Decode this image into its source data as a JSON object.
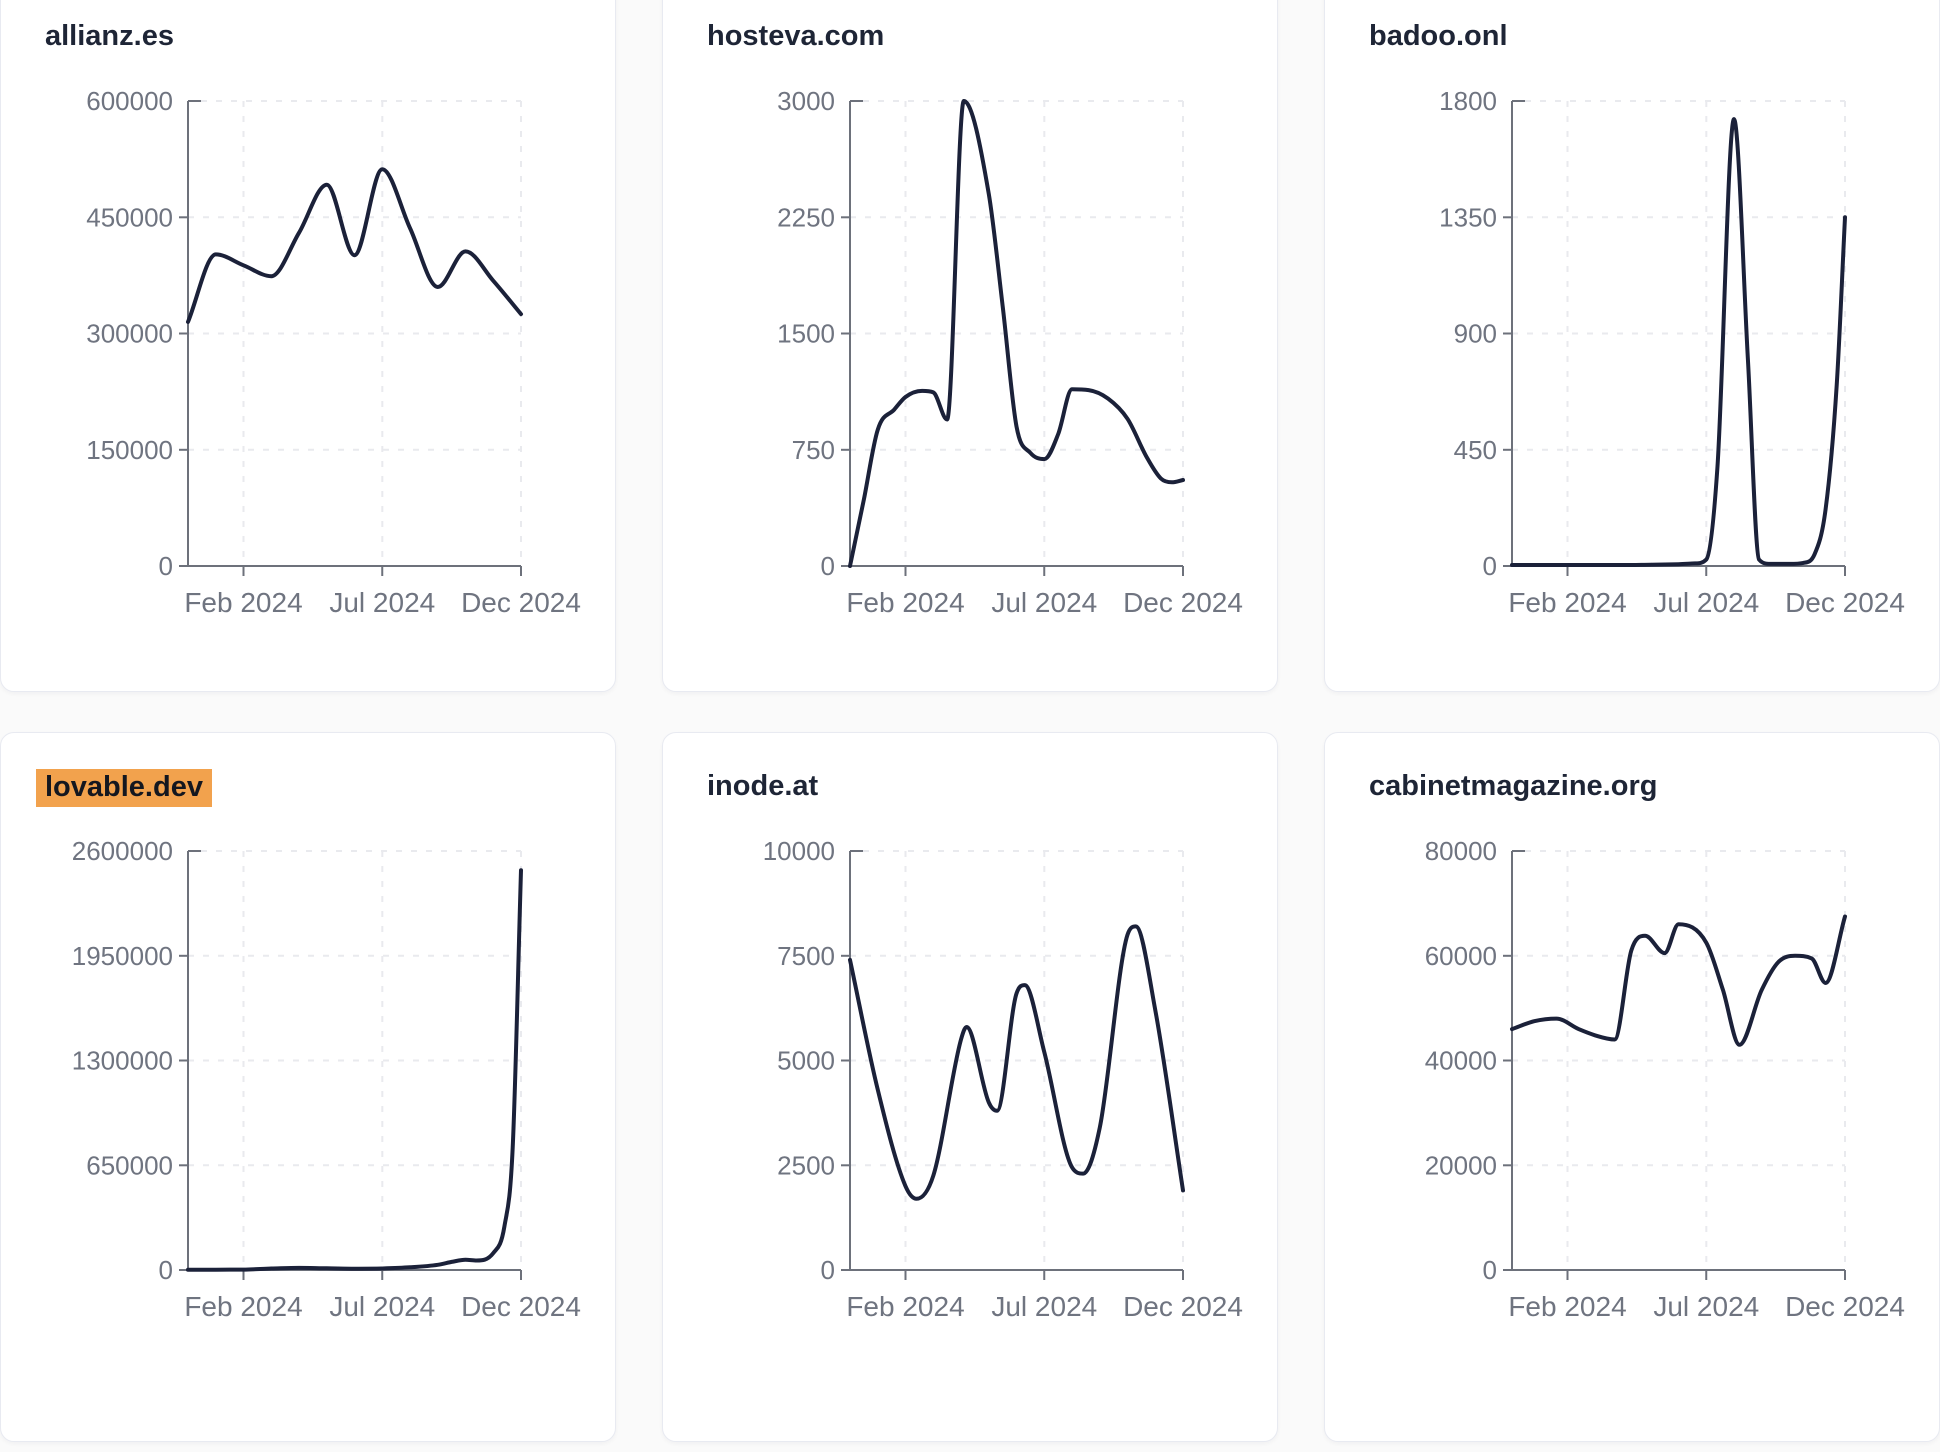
{
  "page": {
    "background_color": "#fafafa",
    "card_background": "#ffffff",
    "card_border_color": "#e8eaf1",
    "title_color": "#1e2536",
    "axis_color": "#6d717b",
    "axis_text_color": "#6f7480",
    "gridline_color": "#e9eaee",
    "line_color": "#1b2139",
    "highlight_color": "#f2a24d"
  },
  "chart_data": [
    {
      "type": "line",
      "title": "allianz.es",
      "highlighted": false,
      "x_unit": "month_index (0 = Dec 2023, 12 = Dec 2024)",
      "x_ticks": {
        "labels": [
          "Feb 2024",
          "Jul 2024",
          "Dec 2024"
        ],
        "positions": [
          2,
          7,
          12
        ]
      },
      "y_ticks": [
        0,
        150000,
        300000,
        450000,
        600000
      ],
      "ylim": [
        0,
        600000
      ],
      "grid": "dashed",
      "legend": "none",
      "x": [
        0,
        1,
        2,
        3,
        4,
        5,
        6,
        7,
        8,
        9,
        10,
        11,
        12
      ],
      "y": [
        315000,
        402000,
        388000,
        374000,
        430000,
        492000,
        401000,
        512000,
        436000,
        360000,
        406000,
        368000,
        325000
      ]
    },
    {
      "type": "line",
      "title": "hosteva.com",
      "highlighted": false,
      "x_unit": "month_index (0 = Dec 2023, 12 = Dec 2024)",
      "x_ticks": {
        "labels": [
          "Feb 2024",
          "Jul 2024",
          "Dec 2024"
        ],
        "positions": [
          2,
          7,
          12
        ]
      },
      "y_ticks": [
        0,
        750,
        1500,
        2250,
        3000
      ],
      "ylim": [
        0,
        3000
      ],
      "grid": "dashed",
      "legend": "none",
      "x": [
        0,
        0.5,
        1,
        1.6,
        2,
        2.6,
        3,
        3.5,
        4.1,
        5,
        5.5,
        6,
        6.5,
        7,
        7.5,
        8,
        8.6,
        9.3,
        10,
        10.7,
        11.2,
        11.6,
        12
      ],
      "y": [
        0,
        430,
        880,
        1010,
        1090,
        1130,
        1120,
        945,
        3000,
        2400,
        1680,
        900,
        730,
        690,
        850,
        1140,
        1135,
        1080,
        950,
        700,
        565,
        540,
        555
      ]
    },
    {
      "type": "line",
      "title": "badoo.onl",
      "highlighted": false,
      "x_unit": "month_index (0 = Dec 2023, 12 = Dec 2024)",
      "x_ticks": {
        "labels": [
          "Feb 2024",
          "Jul 2024",
          "Dec 2024"
        ],
        "positions": [
          2,
          7,
          12
        ]
      },
      "y_ticks": [
        0,
        450,
        900,
        1350,
        1800
      ],
      "ylim": [
        0,
        1800
      ],
      "grid": "dashed",
      "legend": "none",
      "x": [
        0,
        1,
        2,
        3,
        4,
        5,
        6,
        6.6,
        7,
        7.4,
        8,
        8.5,
        8.9,
        9.3,
        10,
        10.5,
        10.9,
        11.3,
        11.7,
        12
      ],
      "y": [
        4,
        4,
        4,
        4,
        4,
        5,
        7,
        10,
        25,
        380,
        1730,
        800,
        25,
        8,
        8,
        12,
        45,
        220,
        700,
        1350
      ]
    },
    {
      "type": "line",
      "title": "lovable.dev",
      "highlighted": true,
      "x_unit": "month_index (0 = Dec 2023, 12 = Dec 2024)",
      "x_ticks": {
        "labels": [
          "Feb 2024",
          "Jul 2024",
          "Dec 2024"
        ],
        "positions": [
          2,
          7,
          12
        ]
      },
      "y_ticks": [
        0,
        650000,
        1300000,
        1950000,
        2600000
      ],
      "ylim": [
        0,
        2600000
      ],
      "grid": "dashed",
      "legend": "none",
      "x": [
        0,
        1,
        2,
        3,
        4,
        5,
        6,
        7,
        8,
        9,
        9.5,
        10,
        10.4,
        11,
        11.4,
        11.7,
        12
      ],
      "y": [
        1200,
        1600,
        2200,
        9000,
        13000,
        10500,
        8000,
        9500,
        17000,
        32000,
        50000,
        63000,
        59000,
        105000,
        270000,
        760000,
        2480000
      ]
    },
    {
      "type": "line",
      "title": "inode.at",
      "highlighted": false,
      "x_unit": "month_index (0 = Dec 2023, 12 = Dec 2024)",
      "x_ticks": {
        "labels": [
          "Feb 2024",
          "Jul 2024",
          "Dec 2024"
        ],
        "positions": [
          2,
          7,
          12
        ]
      },
      "y_ticks": [
        0,
        2500,
        5000,
        7500,
        10000
      ],
      "ylim": [
        0,
        10000
      ],
      "grid": "dashed",
      "legend": "none",
      "x": [
        0,
        1,
        2,
        2.4,
        3,
        4,
        4.2,
        5,
        5.3,
        6,
        6.3,
        7,
        8,
        8.4,
        9,
        10,
        10.3,
        11,
        12
      ],
      "y": [
        7400,
        4300,
        2000,
        1700,
        2250,
        5500,
        5800,
        4000,
        3800,
        6600,
        6800,
        5200,
        2450,
        2300,
        3400,
        8000,
        8200,
        6200,
        1900
      ]
    },
    {
      "type": "line",
      "title": "cabinetmagazine.org",
      "highlighted": false,
      "x_unit": "month_index (0 = Dec 2023, 12 = Dec 2024)",
      "x_ticks": {
        "labels": [
          "Feb 2024",
          "Jul 2024",
          "Dec 2024"
        ],
        "positions": [
          2,
          7,
          12
        ]
      },
      "y_ticks": [
        0,
        20000,
        40000,
        60000,
        80000
      ],
      "ylim": [
        0,
        80000
      ],
      "grid": "dashed",
      "legend": "none",
      "x": [
        0,
        0.8,
        1.6,
        2.4,
        3,
        3.7,
        4.3,
        4.8,
        5.5,
        6,
        7,
        7.6,
        8.2,
        9,
        9.6,
        10.2,
        10.8,
        11.3,
        12
      ],
      "y": [
        46000,
        47500,
        48000,
        46000,
        44800,
        44000,
        61000,
        63800,
        60500,
        66000,
        62500,
        53500,
        43000,
        53500,
        58800,
        60000,
        59500,
        54800,
        67500
      ]
    }
  ]
}
